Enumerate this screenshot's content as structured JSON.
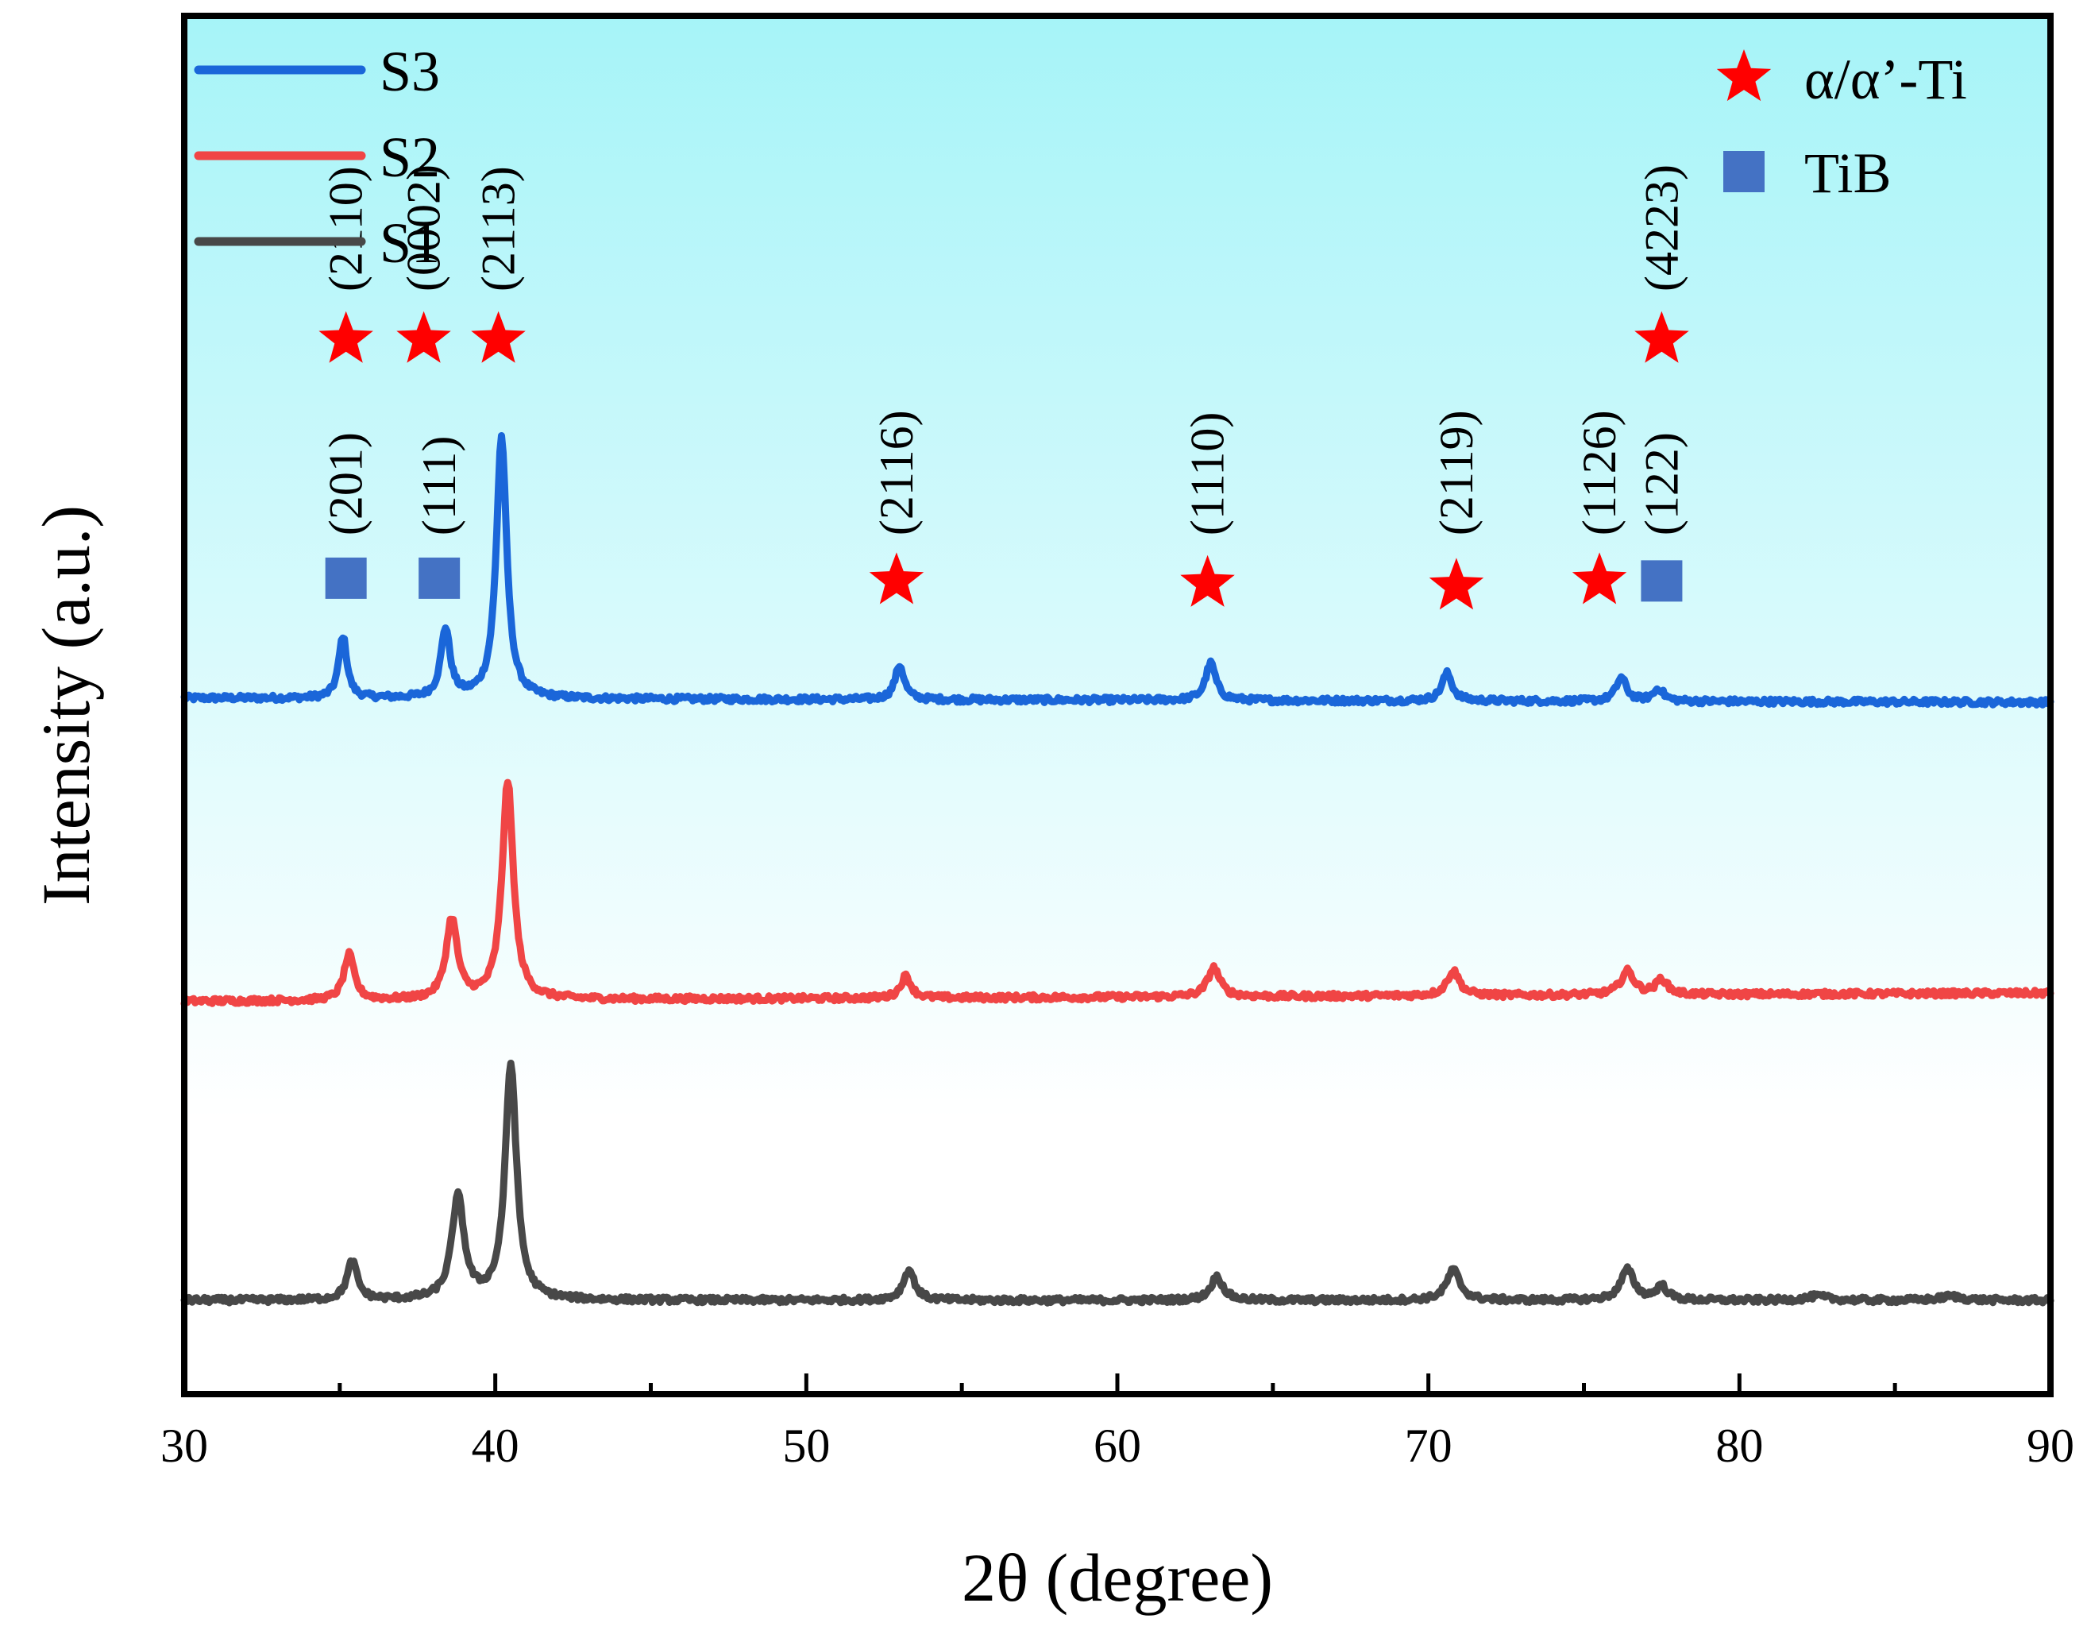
{
  "colors": {
    "s3": "#1a66d9",
    "s2": "#f04545",
    "s1": "#484848",
    "star": "#ff0000",
    "square": "#4472c4",
    "bg_top": "#a6f4f8",
    "bg_bottom": "#ffffff"
  },
  "chart_data": {
    "type": "line",
    "xlabel": "2θ (degree)",
    "ylabel": "Intensity (a.u.)",
    "xlim": [
      30,
      90
    ],
    "xticks": [
      30,
      40,
      50,
      60,
      70,
      80,
      90
    ],
    "grid": false,
    "legend_position": "top-left",
    "series": [
      {
        "name": "S3",
        "color_key": "s3",
        "baseline": 0.505,
        "baseline_drift": -0.003,
        "peaks": [
          {
            "x": 35.1,
            "h": 0.045,
            "w": 0.16
          },
          {
            "x": 38.4,
            "h": 0.05,
            "w": 0.18
          },
          {
            "x": 40.2,
            "h": 0.19,
            "w": 0.2
          },
          {
            "x": 53.0,
            "h": 0.025,
            "w": 0.18
          },
          {
            "x": 63.0,
            "h": 0.027,
            "w": 0.2
          },
          {
            "x": 70.6,
            "h": 0.02,
            "w": 0.2
          },
          {
            "x": 76.2,
            "h": 0.017,
            "w": 0.2
          },
          {
            "x": 77.4,
            "h": 0.009,
            "w": 0.2
          }
        ]
      },
      {
        "name": "S2",
        "color_key": "s2",
        "baseline": 0.285,
        "baseline_drift": 0.006,
        "peaks": [
          {
            "x": 35.3,
            "h": 0.033,
            "w": 0.2
          },
          {
            "x": 38.6,
            "h": 0.058,
            "w": 0.22
          },
          {
            "x": 40.4,
            "h": 0.158,
            "w": 0.22
          },
          {
            "x": 53.2,
            "h": 0.016,
            "w": 0.2
          },
          {
            "x": 63.1,
            "h": 0.021,
            "w": 0.24
          },
          {
            "x": 70.8,
            "h": 0.018,
            "w": 0.24
          },
          {
            "x": 76.4,
            "h": 0.017,
            "w": 0.26
          },
          {
            "x": 77.5,
            "h": 0.011,
            "w": 0.22
          }
        ]
      },
      {
        "name": "S1",
        "color_key": "s1",
        "baseline": 0.068,
        "baseline_drift": 0.0,
        "peaks": [
          {
            "x": 35.4,
            "h": 0.028,
            "w": 0.2
          },
          {
            "x": 38.8,
            "h": 0.074,
            "w": 0.24
          },
          {
            "x": 40.5,
            "h": 0.171,
            "w": 0.22
          },
          {
            "x": 53.3,
            "h": 0.022,
            "w": 0.22
          },
          {
            "x": 63.2,
            "h": 0.017,
            "w": 0.24
          },
          {
            "x": 70.8,
            "h": 0.022,
            "w": 0.26
          },
          {
            "x": 76.4,
            "h": 0.022,
            "w": 0.26
          },
          {
            "x": 77.5,
            "h": 0.01,
            "w": 0.22
          },
          {
            "x": 82.5,
            "h": 0.003,
            "w": 0.4
          },
          {
            "x": 86.8,
            "h": 0.003,
            "w": 0.4
          }
        ]
      }
    ],
    "phase_legend": [
      {
        "marker": "star",
        "label": "α/α’-Ti"
      },
      {
        "marker": "square",
        "label": "TiB"
      }
    ],
    "annotations": [
      {
        "marker": "star",
        "x": 35.2,
        "y": 0.765,
        "label": "(2110)",
        "label_y": 0.8
      },
      {
        "marker": "star",
        "x": 37.7,
        "y": 0.765,
        "label": "(0002)",
        "label_y": 0.8
      },
      {
        "marker": "star",
        "x": 40.1,
        "y": 0.765,
        "label": "(2113)",
        "label_y": 0.8
      },
      {
        "marker": "square",
        "x": 35.2,
        "y": 0.592,
        "label": "(201)",
        "label_y": 0.623
      },
      {
        "marker": "square",
        "x": 38.2,
        "y": 0.592,
        "label": "(111)",
        "label_y": 0.623
      },
      {
        "marker": "star",
        "x": 52.9,
        "y": 0.59,
        "label": "(2116)",
        "label_y": 0.623
      },
      {
        "marker": "star",
        "x": 62.9,
        "y": 0.588,
        "label": "(1110)",
        "label_y": 0.623
      },
      {
        "marker": "star",
        "x": 70.9,
        "y": 0.586,
        "label": "(2119)",
        "label_y": 0.623
      },
      {
        "marker": "star",
        "x": 75.5,
        "y": 0.59,
        "label": "(1126)",
        "label_y": 0.623
      },
      {
        "marker": "square",
        "x": 77.5,
        "y": 0.59,
        "label": "(122)",
        "label_y": 0.623
      },
      {
        "marker": "star",
        "x": 77.5,
        "y": 0.765,
        "label": "(4223)",
        "label_y": 0.8
      }
    ]
  }
}
